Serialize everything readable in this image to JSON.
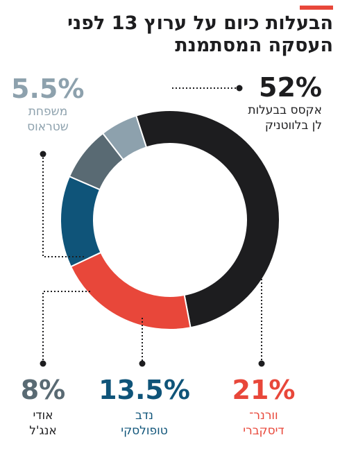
{
  "header": {
    "title_lines": [
      "הבעלות כיום על ערוץ 13 לפני",
      "העסקה המסתמנת"
    ]
  },
  "chart_data": {
    "type": "pie",
    "variant": "donut",
    "title": "הבעלות כיום על ערוץ 13 לפני העסקה המסתמנת",
    "slices": [
      {
        "name": "אקסס בבעלות לן בלווטניק",
        "label_lines": [
          "אקסס בבעלות",
          "לן בלווטניק"
        ],
        "value": 52,
        "display": "52%",
        "color": "#1d1d1f"
      },
      {
        "name": "וורנר־ דיסקברי",
        "label_lines": [
          "וורנר־",
          "דיסקברי"
        ],
        "value": 21,
        "display": "21%",
        "color": "#e8473a"
      },
      {
        "name": "נדב טופולסקי",
        "label_lines": [
          "נדב",
          "טופולסקי"
        ],
        "value": 13.5,
        "display": "13.5%",
        "color": "#0f5479"
      },
      {
        "name": "אודי אנג'ל",
        "label_lines": [
          "אודי",
          "אנג'ל"
        ],
        "value": 8,
        "display": "8%",
        "color": "#596a73"
      },
      {
        "name": "משפחת שטראוס",
        "label_lines": [
          "משפחת",
          "שטראוס"
        ],
        "value": 5.5,
        "display": "5.5%",
        "color": "#8da1ad"
      }
    ],
    "label_colors": {
      "dark": "#1d1d1f",
      "light_gray": "#8da1ad",
      "slate": "#596a73",
      "navy": "#0f5479",
      "red": "#e8473a"
    }
  }
}
